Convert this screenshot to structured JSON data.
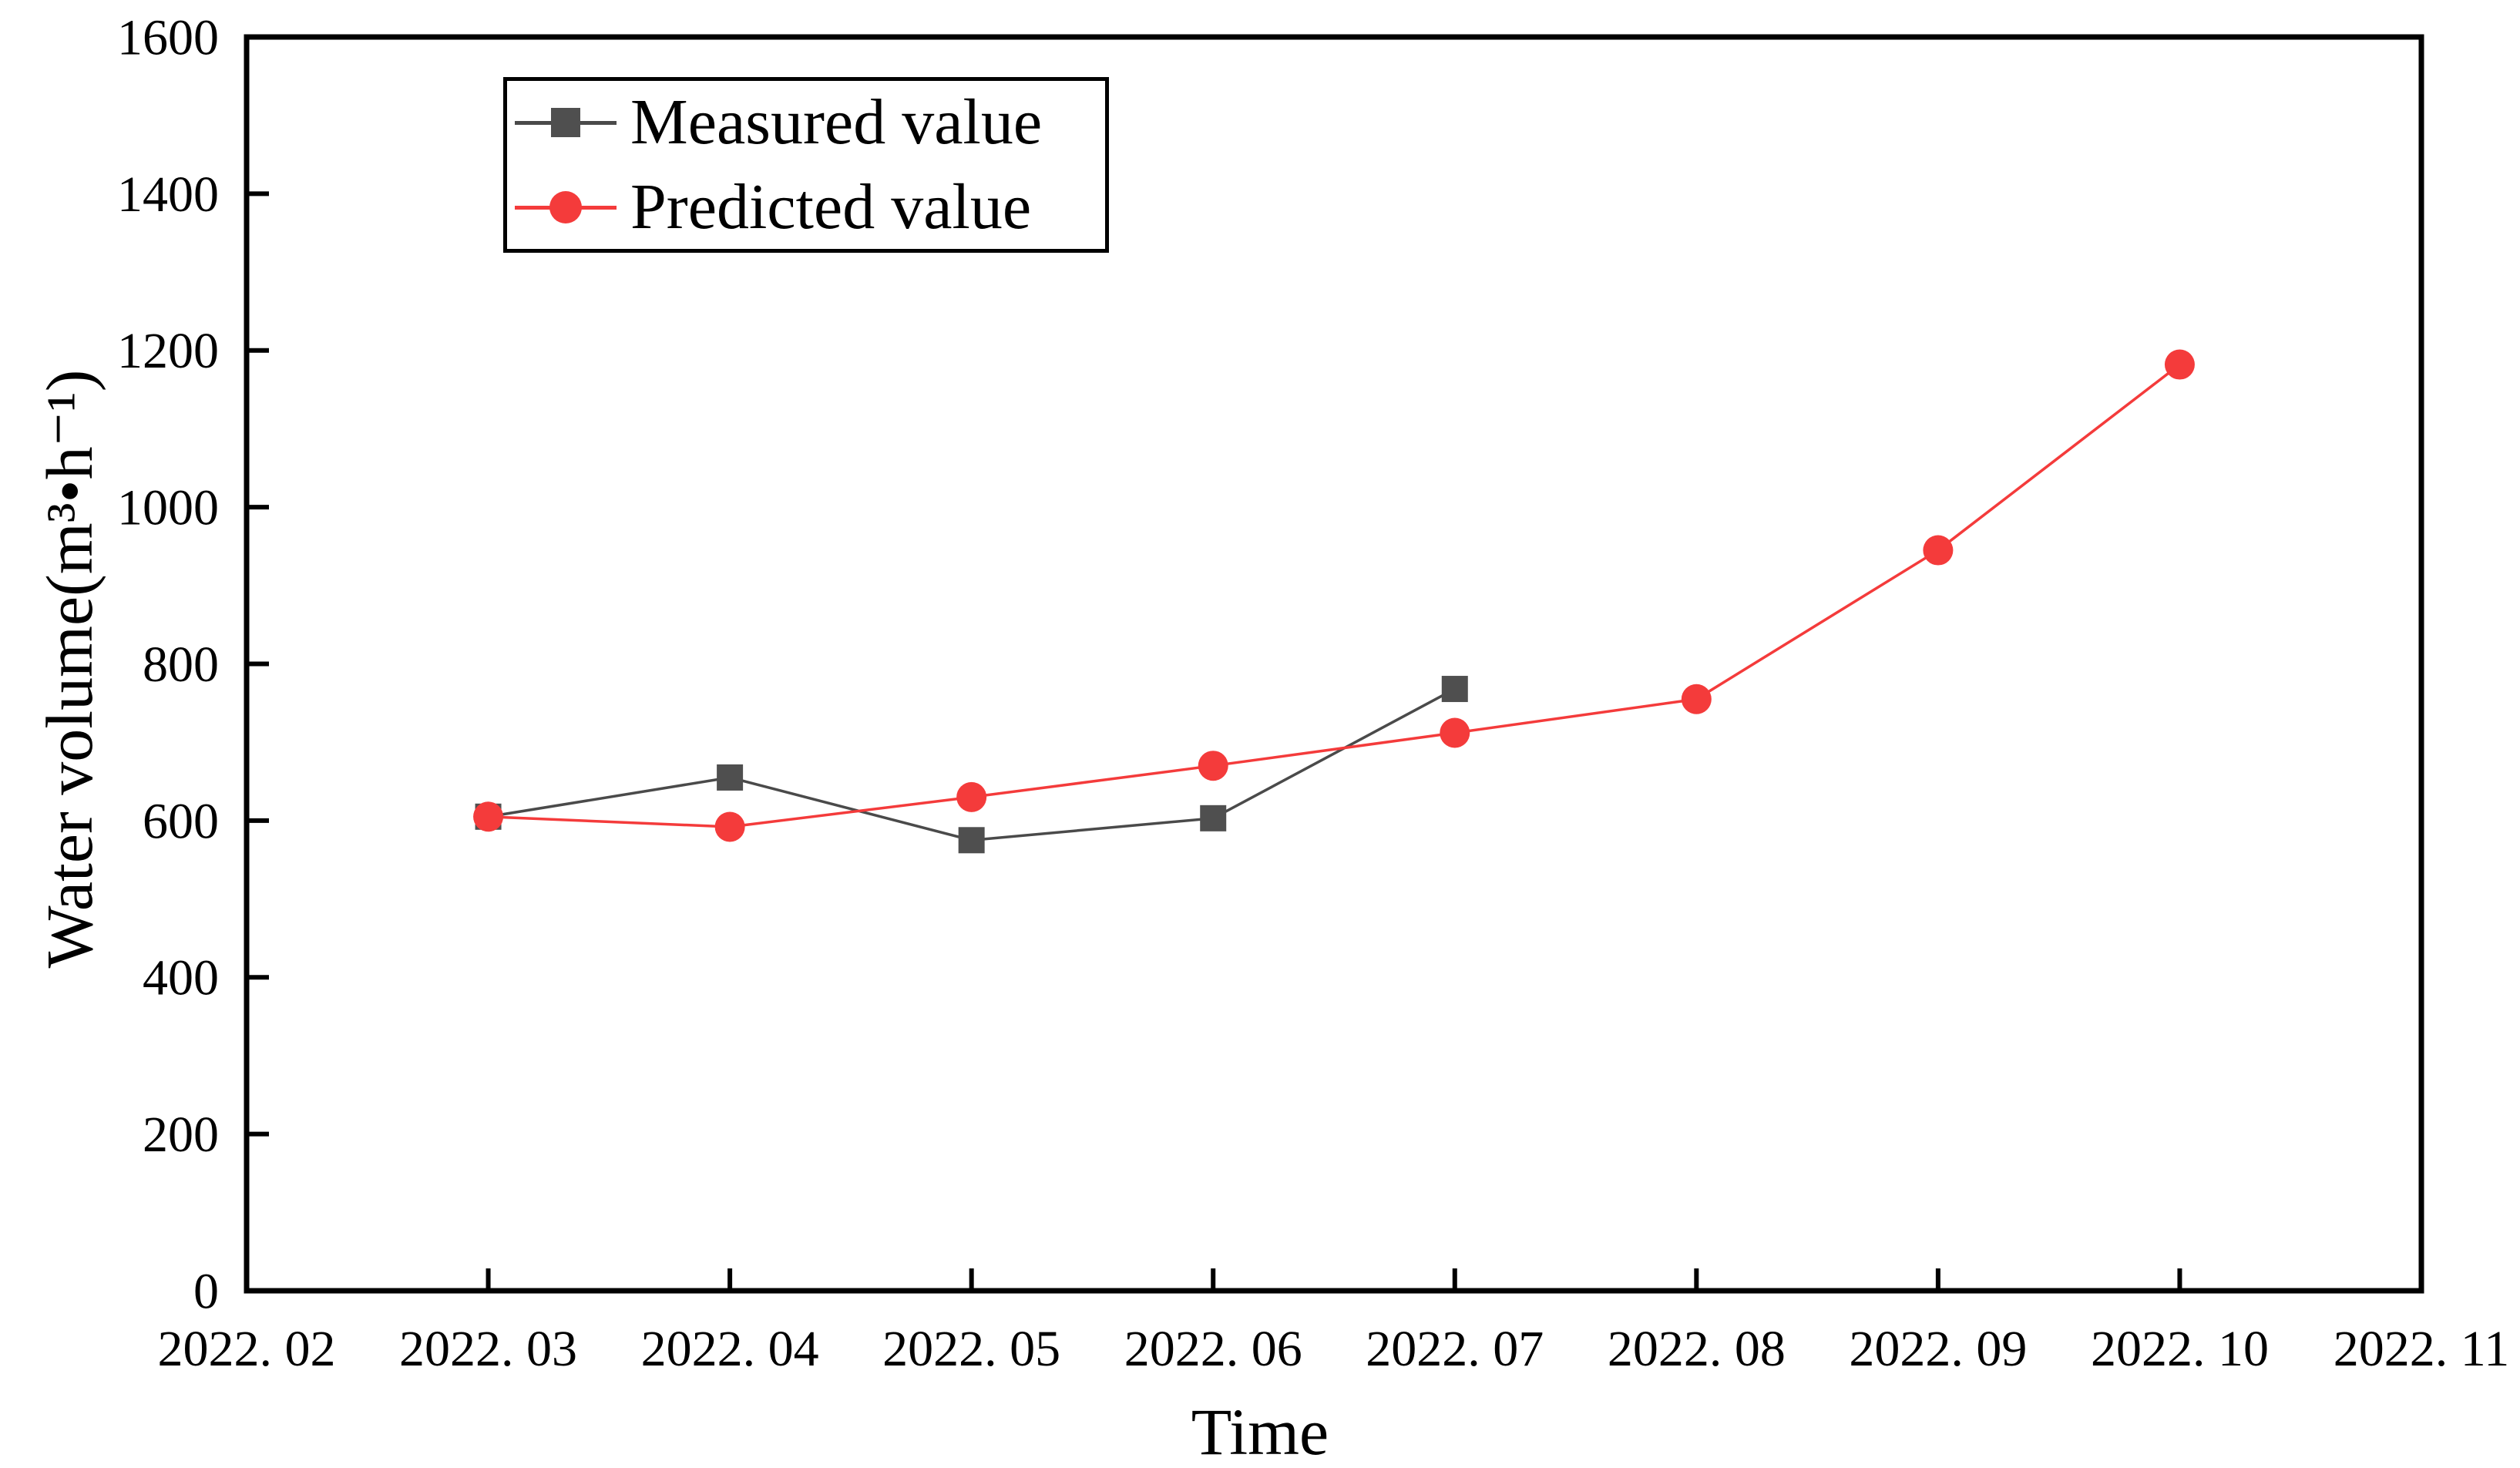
{
  "chart_data": {
    "type": "line",
    "title": "",
    "xlabel": "Time",
    "ylabel": "Water volume(m³•h⁻¹)",
    "x_categories": [
      "2022. 02",
      "2022. 03",
      "2022. 04",
      "2022. 05",
      "2022. 06",
      "2022. 07",
      "2022. 08",
      "2022. 09",
      "2022. 10",
      "2022. 11"
    ],
    "x_tick_labels": [
      "2022. 02",
      "2022. 03",
      "2022. 04",
      "2022. 05",
      "2022. 06",
      "2022. 07",
      "2022. 08",
      "2022. 09",
      "2022. 10",
      "2022. 11"
    ],
    "y_ticks": [
      0,
      200,
      400,
      600,
      800,
      1000,
      1200,
      1400,
      1600
    ],
    "ylim": [
      0,
      1600
    ],
    "grid": false,
    "legend_position": "upper-left-inside",
    "series": [
      {
        "name": "Measured value",
        "marker": "square",
        "marker_color": "#4f4f4f",
        "line_color": "#4a4a4a",
        "x": [
          "2022. 03",
          "2022. 04",
          "2022. 05",
          "2022. 06",
          "2022. 07"
        ],
        "values": [
          605,
          655,
          575,
          603,
          768
        ]
      },
      {
        "name": "Predicted value",
        "marker": "circle",
        "marker_color": "#f43b3b",
        "line_color": "#f43b3b",
        "x": [
          "2022. 03",
          "2022. 04",
          "2022. 05",
          "2022. 06",
          "2022. 07",
          "2022. 08",
          "2022. 09",
          "2022. 10"
        ],
        "values": [
          605,
          592,
          630,
          670,
          712,
          755,
          945,
          1182
        ]
      }
    ]
  },
  "colors": {
    "axis": "#000000",
    "background": "#ffffff",
    "measured": "#4f4f4f",
    "predicted": "#f43b3b"
  }
}
